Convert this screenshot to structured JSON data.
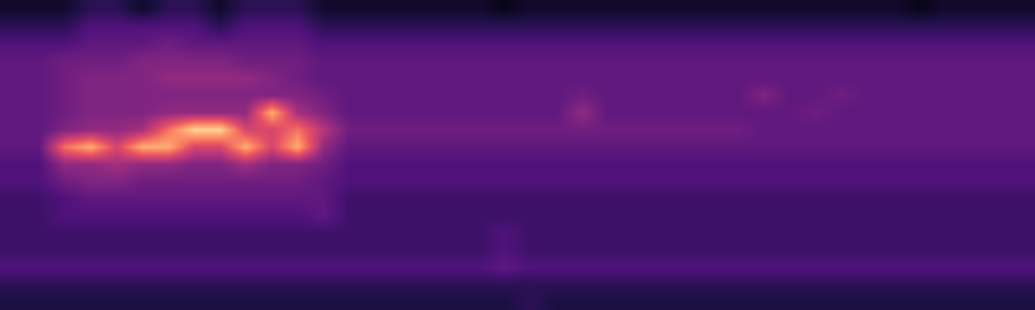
{
  "chart_data": {
    "type": "heatmap",
    "color": "magma",
    "tick_labels": false,
    "zlim": [
      0,
      12
    ],
    "cells": [
      [
        1,
        1,
        1,
        2,
        2,
        1,
        2,
        2,
        1,
        2,
        2,
        2,
        1,
        1,
        1,
        1,
        1,
        1,
        1,
        0.5,
        1,
        1,
        1,
        1,
        1,
        1,
        1,
        1,
        1,
        1,
        1,
        1,
        1,
        1,
        1,
        0.5,
        1,
        1,
        1,
        1
      ],
      [
        2,
        2,
        2,
        3,
        3,
        3,
        3,
        3,
        2,
        3,
        3,
        3,
        2,
        2,
        2,
        2,
        2,
        2,
        2,
        2,
        2,
        2,
        2,
        2,
        2,
        2,
        2,
        2,
        2,
        2,
        2,
        2,
        2,
        2,
        2,
        2,
        2,
        2,
        2,
        2
      ],
      [
        3,
        3,
        3,
        3.5,
        3.5,
        3.5,
        4,
        3.5,
        3.5,
        3.5,
        3.5,
        3.5,
        3,
        3,
        3,
        3,
        3,
        3,
        3,
        3,
        3,
        3,
        3,
        3,
        3,
        3,
        3,
        3,
        3,
        3,
        3,
        3,
        3,
        3,
        3,
        3,
        3,
        3,
        3,
        3
      ],
      [
        3.5,
        3.5,
        4,
        4,
        4,
        4.5,
        4.5,
        4.5,
        4.5,
        4,
        4,
        4,
        3.5,
        3.5,
        3.5,
        3.5,
        3.5,
        3.5,
        3.5,
        3.5,
        3.5,
        3.5,
        3.5,
        3.5,
        3.5,
        3.5,
        3.5,
        3.5,
        3.5,
        3.5,
        3.5,
        3.5,
        3.5,
        3.5,
        3.5,
        3.5,
        3.5,
        3.5,
        3.5,
        3.5
      ],
      [
        3.5,
        3.5,
        4,
        4.5,
        4.5,
        4.5,
        5,
        5,
        5,
        5,
        4.5,
        4,
        3.5,
        3.5,
        3.5,
        3.5,
        3.5,
        3.5,
        3.5,
        3.5,
        3.5,
        3.5,
        3.5,
        3.5,
        3.5,
        3.5,
        3.5,
        3.5,
        3.5,
        3.5,
        3.5,
        3.5,
        3.5,
        3.5,
        3.5,
        3.5,
        3.5,
        3.5,
        3.5,
        3.5
      ],
      [
        3.5,
        3.5,
        4,
        4.5,
        4.5,
        4.5,
        4.5,
        4.5,
        4.5,
        4.5,
        4.5,
        4.5,
        4,
        3.5,
        3.5,
        3.5,
        3.5,
        3.5,
        3.5,
        3.5,
        3.5,
        3.5,
        4,
        3.5,
        3.5,
        3.5,
        3.5,
        3.5,
        3.5,
        4.5,
        3.5,
        3.5,
        4,
        3.5,
        3.5,
        3.5,
        3.5,
        3.5,
        3.5,
        3.5
      ],
      [
        3.5,
        3.5,
        4,
        4.5,
        4.5,
        4.5,
        5,
        5,
        5,
        5,
        10,
        5.5,
        4.5,
        3.5,
        3.5,
        3.5,
        3.5,
        3.5,
        3.5,
        3.5,
        3.5,
        3.5,
        5,
        3.5,
        3.5,
        3.5,
        3.5,
        3.5,
        3.5,
        3.5,
        3.5,
        4,
        3.5,
        3.5,
        3.5,
        3.5,
        3.5,
        3.5,
        3.5,
        3.5
      ],
      [
        3.5,
        3.5,
        4.5,
        5,
        5,
        5.5,
        8.5,
        11,
        11,
        7,
        7,
        8.5,
        6,
        4,
        4,
        4,
        4,
        4,
        4,
        4,
        4,
        4,
        4,
        4,
        4,
        4,
        4,
        4,
        4,
        3.5,
        3.5,
        3.5,
        3.5,
        3.5,
        3.5,
        3.5,
        3.5,
        3.5,
        3.5,
        3.5
      ],
      [
        3.5,
        3.5,
        8.5,
        10,
        7,
        10,
        10,
        7,
        7,
        10,
        7,
        10,
        5,
        3.5,
        3.5,
        3.5,
        3.5,
        3.5,
        3.5,
        3.5,
        3.5,
        3.5,
        3.5,
        3.5,
        3.5,
        3.5,
        3.5,
        3.5,
        3.5,
        3.5,
        3.5,
        3.5,
        3.5,
        3.5,
        3.5,
        3.5,
        3.5,
        3.5,
        3.5,
        3.5
      ],
      [
        3,
        3,
        5,
        5,
        5.5,
        5,
        5,
        4.5,
        4.5,
        5.5,
        4.5,
        4.5,
        4,
        3,
        3,
        3,
        3,
        3,
        3,
        3,
        3,
        3,
        3,
        3,
        3,
        3,
        3,
        3,
        3,
        3,
        3,
        3,
        3,
        3,
        3,
        3,
        3,
        3,
        3,
        3
      ],
      [
        3,
        3,
        4,
        4.5,
        4.5,
        4,
        4,
        4,
        4,
        4,
        4,
        4,
        3.5,
        3,
        3,
        3,
        3,
        3,
        3,
        3,
        3,
        3,
        3,
        3,
        3,
        3,
        3,
        3,
        3,
        3,
        3,
        3,
        3,
        3,
        3,
        3,
        3,
        3,
        3,
        3
      ],
      [
        2.5,
        2.5,
        3,
        3.5,
        3.5,
        3.5,
        3.5,
        3.5,
        3.5,
        3.5,
        3.5,
        3.5,
        3.5,
        2.5,
        2.5,
        2.5,
        2.5,
        2.5,
        2.5,
        2.5,
        2.5,
        2.5,
        2.5,
        2.5,
        2.5,
        2.5,
        2.5,
        2.5,
        2.5,
        2.5,
        2.5,
        2.5,
        2.5,
        2.5,
        2.5,
        2.5,
        2.5,
        2.5,
        2.5,
        2.5
      ],
      [
        2.5,
        2.5,
        3,
        3,
        3,
        3,
        3,
        3,
        3,
        3,
        3,
        3,
        3.5,
        2.5,
        2.5,
        2.5,
        2.5,
        2.5,
        2.5,
        2.5,
        2.5,
        2.5,
        2.5,
        2.5,
        2.5,
        2.5,
        2.5,
        2.5,
        2.5,
        2.5,
        2.5,
        2.5,
        2.5,
        2.5,
        2.5,
        2.5,
        2.5,
        2.5,
        2.5,
        2.5
      ],
      [
        2.5,
        2.5,
        2.5,
        2.5,
        2.5,
        2.5,
        2.5,
        2.5,
        2.5,
        2.5,
        2.5,
        2.5,
        2.5,
        2.5,
        2.5,
        2.5,
        2.5,
        2.5,
        2.5,
        3,
        2.5,
        2.5,
        2.5,
        2.5,
        2.5,
        2.5,
        2.5,
        2.5,
        2.5,
        2.5,
        2.5,
        2.5,
        2.5,
        2.5,
        2.5,
        2.5,
        2.5,
        2.5,
        2.5,
        2.5
      ],
      [
        2.5,
        2.5,
        2.5,
        2.5,
        2.5,
        2.5,
        2.5,
        2.5,
        2.5,
        2.5,
        2.5,
        2.5,
        2.5,
        2.5,
        2.5,
        2.5,
        2.5,
        2.5,
        2.5,
        3,
        2.5,
        2.5,
        2.5,
        2.5,
        2.5,
        2.5,
        2.5,
        2.5,
        2.5,
        2.5,
        2.5,
        2.5,
        2.5,
        2.5,
        2.5,
        2.5,
        2.5,
        2.5,
        2.5,
        2.5
      ],
      [
        3,
        3,
        3,
        3,
        3,
        3,
        3,
        3,
        3,
        3,
        3,
        3,
        3,
        3,
        3,
        3,
        3,
        3,
        3,
        3.5,
        3,
        3,
        3,
        3,
        3,
        3,
        3,
        3,
        3,
        3,
        3,
        3,
        3,
        3,
        3,
        3,
        3,
        3,
        3,
        3
      ],
      [
        2,
        2,
        2,
        2,
        2,
        2,
        2,
        2,
        2,
        2,
        2,
        2,
        2,
        2,
        2,
        2,
        2,
        2,
        2,
        2,
        2,
        2,
        2,
        2,
        2,
        2,
        2,
        2,
        2,
        2,
        2,
        2,
        2,
        2,
        2,
        2,
        2,
        2,
        2,
        2
      ],
      [
        1.5,
        1.5,
        1.5,
        1.5,
        1.5,
        1.5,
        1.5,
        1.5,
        1.5,
        1.5,
        1.5,
        1.5,
        1.5,
        1.5,
        1.5,
        1.5,
        1.5,
        1.5,
        1.5,
        1.5,
        2,
        1.5,
        1.5,
        1.5,
        1.5,
        1.5,
        1.5,
        1.5,
        1.5,
        1.5,
        1.5,
        1.5,
        1.5,
        1.5,
        1.5,
        1.5,
        1.5,
        1.5,
        1.5,
        1.5
      ]
    ]
  }
}
